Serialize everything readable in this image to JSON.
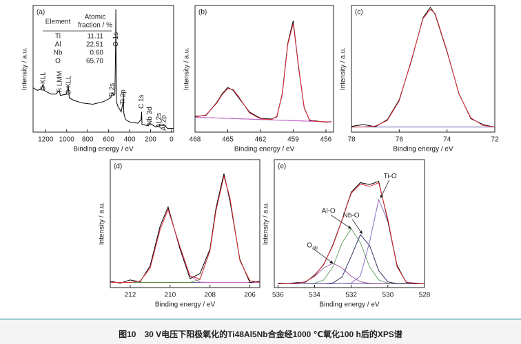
{
  "chart_data": [
    {
      "type": "line",
      "panel_label": "(a)",
      "xlabel": "Binding energy / eV",
      "ylabel": "Intensity / a.u.",
      "xlim": [
        1320,
        -20
      ],
      "ylim": [
        0,
        100
      ],
      "xticks": [
        1200,
        1000,
        800,
        600,
        400,
        200,
        0
      ],
      "x": [
        1320,
        1280,
        1240,
        1225,
        1215,
        1150,
        1100,
        1070,
        1060,
        1000,
        985,
        975,
        930,
        850,
        750,
        650,
        580,
        565,
        550,
        540,
        533,
        531,
        529,
        526,
        510,
        480,
        462,
        459,
        455,
        440,
        400,
        320,
        290,
        285,
        282,
        220,
        207,
        150,
        119,
        74,
        40,
        -20
      ],
      "series": [
        {
          "color": "#000000",
          "values": [
            35,
            33,
            34,
            38,
            33,
            30,
            30,
            33,
            29,
            30,
            37,
            27,
            25,
            23,
            22,
            24,
            27,
            31,
            29,
            30,
            70,
            97,
            60,
            24,
            20,
            16,
            24,
            31,
            15,
            10,
            8,
            7,
            10,
            16,
            6,
            5,
            7,
            4,
            5,
            6,
            3,
            3
          ]
        }
      ],
      "annotations": [
        {
          "text": "C KLL",
          "x": 1223
        },
        {
          "text": "Ti LMM",
          "x": 1065
        },
        {
          "text": "O KLL",
          "x": 978
        },
        {
          "text": "Ti 2s",
          "x": 564
        },
        {
          "text": "O 1s",
          "x": 531
        },
        {
          "text": "Ti 2p",
          "x": 459
        },
        {
          "text": "C 1s",
          "x": 285
        },
        {
          "text": "Nb 3d",
          "x": 207
        },
        {
          "text": "Al 2s",
          "x": 119
        },
        {
          "text": "Al 2p",
          "x": 74
        }
      ],
      "inset_table": {
        "header": {
          "element": "Element",
          "fraction": [
            "Atomic",
            "fraction / %"
          ]
        },
        "rows": [
          [
            "Ti",
            "11.11"
          ],
          [
            "Al",
            "22.51"
          ],
          [
            "Nb",
            "0.60"
          ],
          [
            "O",
            "65.70"
          ]
        ]
      }
    },
    {
      "type": "line",
      "panel_label": "(b)",
      "xlabel": "Binding energy / eV",
      "ylabel": "Intensity / a.u.",
      "xlim": [
        468,
        455.3
      ],
      "ylim": [
        0,
        100
      ],
      "xticks": [
        468,
        465,
        462,
        459,
        456
      ],
      "x": [
        468,
        467,
        466,
        465.5,
        465,
        464.5,
        464,
        463,
        462,
        461,
        460.5,
        460,
        459.5,
        459,
        458.5,
        458,
        457.5,
        457,
        456,
        455.5
      ],
      "series": [
        {
          "color": "#6a5aa8",
          "values": [
            11.75,
            11.45,
            11.15,
            11.0,
            10.85,
            10.7,
            10.55,
            10.25,
            9.95,
            9.65,
            9.5,
            9.35,
            9.2,
            9.05,
            8.9,
            8.75,
            8.6,
            8.45,
            8.15,
            8.0
          ]
        },
        {
          "color": "#cc66cc",
          "values": [
            11.85,
            13.55,
            22.85,
            29.8,
            34.35,
            33.6,
            27.95,
            15.05,
            10.45,
            9.65,
            9.5,
            9.35,
            9.2,
            9.05,
            8.9,
            8.75,
            8.6,
            8.45,
            8.15,
            8.0
          ]
        },
        {
          "color": "#cc66cc",
          "values": [
            11.75,
            11.45,
            11.15,
            11.0,
            10.85,
            10.7,
            10.55,
            10.25,
            9.95,
            9.85,
            12.5,
            29.75,
            69.1,
            85.75,
            51.8,
            19.25,
            9.7,
            8.55,
            8.15,
            8.0
          ]
        },
        {
          "color": "#000000",
          "values": [
            12.4,
            13.2,
            23.5,
            30.5,
            35.2,
            33.0,
            27.1,
            15.8,
            10.9,
            10.3,
            12.0,
            30.5,
            70.0,
            88.0,
            50.5,
            19.8,
            9.2,
            8.9,
            7.8,
            8.3
          ]
        },
        {
          "color": "#e0303a",
          "values": [
            11.9,
            13.6,
            22.9,
            29.8,
            34.4,
            33.6,
            28.0,
            15.1,
            10.5,
            9.9,
            12.5,
            29.8,
            69.1,
            85.8,
            51.8,
            19.3,
            9.7,
            8.55,
            8.15,
            8.0
          ]
        }
      ]
    },
    {
      "type": "line",
      "panel_label": "(c)",
      "xlabel": "Binding energy / eV",
      "ylabel": "Intensity / a.u.",
      "xlim": [
        78,
        72
      ],
      "ylim": [
        0,
        100
      ],
      "xticks": [
        78,
        76,
        74,
        72
      ],
      "x": [
        78,
        77.5,
        77,
        76.5,
        76,
        75.5,
        75,
        74.7,
        74.5,
        74,
        73.5,
        73,
        72.5,
        72
      ],
      "series": [
        {
          "color": "#6a5aa8",
          "values": [
            4,
            4,
            4,
            4,
            4,
            4,
            4,
            4,
            4,
            4,
            4,
            4,
            4,
            4
          ]
        },
        {
          "color": "#000000",
          "values": [
            4.5,
            6.0,
            4.3,
            9.8,
            25.5,
            55.8,
            90.5,
            98.5,
            93.0,
            63.5,
            30.4,
            10.6,
            6.0,
            3.9
          ]
        },
        {
          "color": "#e0303a",
          "values": [
            4,
            4.1,
            4.8,
            9.2,
            24.7,
            56.6,
            89.8,
            97,
            93.7,
            64.2,
            29.9,
            11.2,
            5.3,
            4.1
          ]
        }
      ]
    },
    {
      "type": "line",
      "panel_label": "(d)",
      "xlabel": "Binding energy / eV",
      "ylabel": "Intensity / a.u.",
      "xlim": [
        213,
        205.5
      ],
      "ylim": [
        0,
        100
      ],
      "xticks": [
        212,
        210,
        208,
        206
      ],
      "x": [
        213,
        212.5,
        212,
        211.5,
        211,
        210.5,
        210.1,
        209.5,
        209,
        208.5,
        208,
        207.7,
        207.3,
        207,
        206.5,
        206,
        205.5
      ],
      "series": [
        {
          "color": "#6a5aa8",
          "values": [
            4,
            4,
            4,
            4,
            4,
            4,
            4,
            4,
            4,
            4,
            4,
            4,
            4,
            4,
            4,
            4,
            4
          ]
        },
        {
          "color": "#cc66cc",
          "values": [
            4,
            4,
            4,
            5.1,
            15.3,
            45.4,
            61,
            31.7,
            9.1,
            4.3,
            4,
            4,
            4,
            4,
            4,
            4,
            4
          ]
        },
        {
          "color": "#5f8a3a",
          "values": [
            4,
            4,
            4,
            4,
            4,
            4,
            4,
            4,
            4,
            6.4,
            28.7,
            59.9,
            87,
            70.4,
            21.1,
            5.3,
            4
          ]
        },
        {
          "color": "#000000",
          "values": [
            5,
            3.5,
            6,
            4.5,
            17,
            48,
            63,
            30,
            7,
            11,
            30,
            62,
            89,
            68,
            22,
            4,
            5
          ]
        },
        {
          "color": "#e0303a",
          "values": [
            4,
            4,
            4,
            5.1,
            15.3,
            45.4,
            61,
            31.7,
            9.1,
            6.7,
            28.7,
            59.9,
            87,
            70.4,
            21.1,
            5.3,
            4
          ]
        }
      ]
    },
    {
      "type": "line",
      "panel_label": "(e)",
      "xlabel": "Binding energy / eV",
      "ylabel": "Intensity / a.u.",
      "xlim": [
        536.2,
        528
      ],
      "ylim": [
        0,
        100
      ],
      "xticks": [
        536,
        534,
        532,
        530,
        528
      ],
      "x": [
        536,
        535.5,
        535,
        534.5,
        534,
        533.5,
        533,
        532.5,
        532,
        531.5,
        531,
        530.5,
        530,
        529.5,
        529,
        528.5,
        528
      ],
      "series": [
        {
          "color": "#6a5aa8",
          "values": [
            3,
            3,
            3,
            3,
            3,
            3,
            3,
            3,
            3,
            3,
            3,
            3,
            3,
            3,
            3,
            3,
            3
          ]
        },
        {
          "color": "#a05a9a",
          "values": [
            3,
            3,
            3.3,
            4.6,
            8.8,
            15.4,
            19,
            15.4,
            8.8,
            4.6,
            3.3,
            3,
            3,
            3,
            3,
            3,
            3
          ]
        },
        {
          "color": "#6aa36a",
          "values": [
            3,
            3,
            3,
            3,
            3.4,
            6,
            16.2,
            35,
            46,
            35,
            16.2,
            6,
            3.4,
            3,
            3,
            3,
            3
          ]
        },
        {
          "color": "#333366",
          "values": [
            3,
            3,
            3,
            3,
            3,
            3,
            3.6,
            8.3,
            24.5,
            41.4,
            33,
            13.2,
            4.5,
            3.1,
            3,
            3,
            3
          ]
        },
        {
          "color": "#8a6fc0",
          "values": [
            3,
            3,
            3,
            3,
            3,
            3,
            3,
            3,
            3.4,
            9.0,
            35.6,
            68.7,
            51.6,
            16.3,
            4.3,
            3,
            3
          ]
        },
        {
          "color": "#000000",
          "values": [
            3.5,
            3,
            3.8,
            4.2,
            9.8,
            18,
            33.5,
            53,
            74.5,
            82,
            80.5,
            83,
            52,
            17.5,
            4,
            3.5,
            2.8
          ]
        },
        {
          "color": "#e0303a",
          "values": [
            3,
            3,
            3.3,
            4.6,
            9.2,
            18.4,
            32.8,
            52.7,
            73.7,
            81,
            79.1,
            81.9,
            53.5,
            16.4,
            4.3,
            3,
            3
          ]
        }
      ],
      "annotations": [
        {
          "text": "Ti-O",
          "x": 530.4,
          "y": 70
        },
        {
          "text": "Nb-O",
          "x": 531.4,
          "y": 42
        },
        {
          "text": "Al-O",
          "x": 532.0,
          "y": 46
        },
        {
          "text": "O",
          "subscript": "ab",
          "x": 533.0,
          "y": 19
        }
      ]
    }
  ],
  "caption": "图10　30 V电压下阳极氧化的Ti48Al5Nb合金经1000 ℃氧化100 h后的XPS谱"
}
